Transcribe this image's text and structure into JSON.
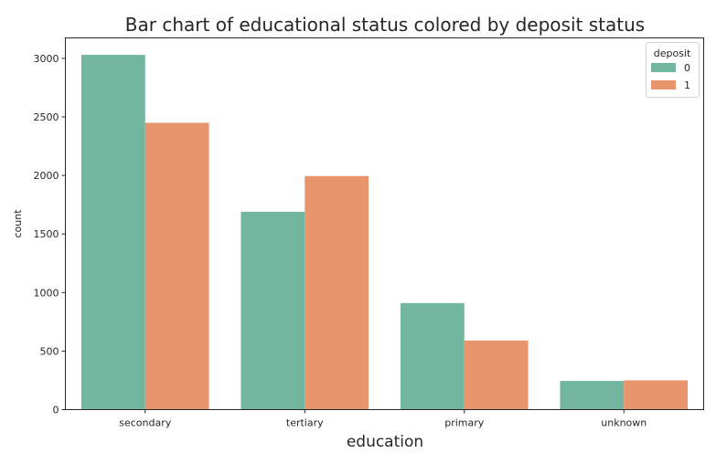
{
  "chart_data": {
    "type": "bar",
    "title": "Bar chart of educational status colored by deposit status",
    "xlabel": "education",
    "ylabel": "count",
    "categories": [
      "secondary",
      "tertiary",
      "primary",
      "unknown"
    ],
    "series": [
      {
        "name": "0",
        "values": [
          3030,
          1690,
          910,
          245
        ],
        "color": "#72b6a0"
      },
      {
        "name": "1",
        "values": [
          2450,
          1995,
          590,
          250
        ],
        "color": "#e8956e"
      }
    ],
    "ylim": [
      0,
      3175
    ],
    "yticks": [
      0,
      500,
      1000,
      1500,
      2000,
      2500,
      3000
    ],
    "legend": {
      "title": "deposit",
      "placement": "top-right"
    },
    "grid": false
  }
}
